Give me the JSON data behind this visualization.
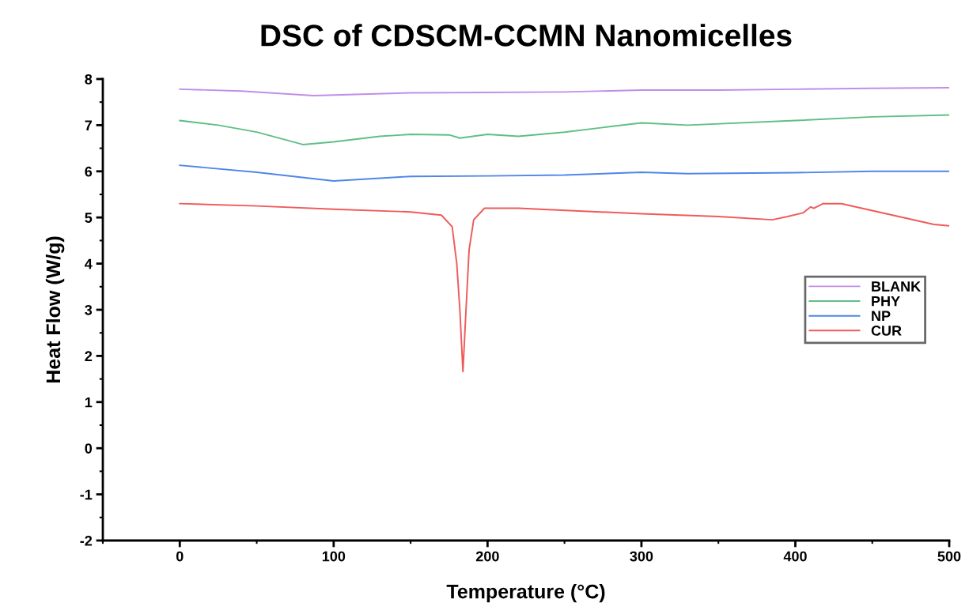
{
  "chart_data": {
    "type": "line",
    "title": "DSC of CDSCM-CCMN Nanomicelles",
    "xlabel": "Temperature (°C)",
    "ylabel": "Heat Flow (W/g)",
    "xlim": [
      -50,
      500
    ],
    "xticks": [
      0,
      100,
      200,
      300,
      400,
      500
    ],
    "ylim": [
      -2,
      8
    ],
    "yticks": [
      -2,
      -1,
      0,
      1,
      2,
      3,
      4,
      5,
      6,
      7,
      8
    ],
    "grid": false,
    "legend": "right",
    "marker": "none",
    "line_style": "solid",
    "series": [
      {
        "name": "BLANK",
        "color": "#c08ee8",
        "x": [
          0,
          40,
          87,
          150,
          200,
          250,
          300,
          350,
          400,
          450,
          500
        ],
        "values": [
          7.78,
          7.74,
          7.64,
          7.7,
          7.71,
          7.72,
          7.76,
          7.76,
          7.78,
          7.8,
          7.81
        ]
      },
      {
        "name": "PHY",
        "color": "#5fbf86",
        "x": [
          0,
          25,
          50,
          80,
          100,
          130,
          150,
          175,
          182,
          200,
          220,
          250,
          300,
          330,
          400,
          450,
          500
        ],
        "values": [
          7.1,
          7.0,
          6.85,
          6.58,
          6.64,
          6.76,
          6.8,
          6.79,
          6.72,
          6.8,
          6.76,
          6.85,
          7.05,
          7.0,
          7.1,
          7.18,
          7.22
        ]
      },
      {
        "name": "NP",
        "color": "#4f86e8",
        "x": [
          0,
          50,
          100,
          150,
          200,
          250,
          300,
          330,
          400,
          450,
          500
        ],
        "values": [
          6.13,
          5.98,
          5.79,
          5.89,
          5.9,
          5.92,
          5.98,
          5.95,
          5.97,
          6.0,
          6.0
        ]
      },
      {
        "name": "CUR",
        "color": "#f05a5a",
        "x": [
          0,
          50,
          100,
          150,
          170,
          177,
          180,
          182,
          184,
          186,
          188,
          191,
          198,
          220,
          300,
          350,
          385,
          395,
          405,
          410,
          412,
          418,
          430,
          450,
          470,
          490,
          500
        ],
        "values": [
          5.3,
          5.25,
          5.18,
          5.12,
          5.05,
          4.8,
          4.0,
          3.0,
          1.66,
          3.0,
          4.3,
          4.95,
          5.2,
          5.2,
          5.08,
          5.02,
          4.95,
          5.02,
          5.1,
          5.23,
          5.2,
          5.3,
          5.3,
          5.15,
          5.0,
          4.85,
          4.82
        ]
      }
    ]
  }
}
